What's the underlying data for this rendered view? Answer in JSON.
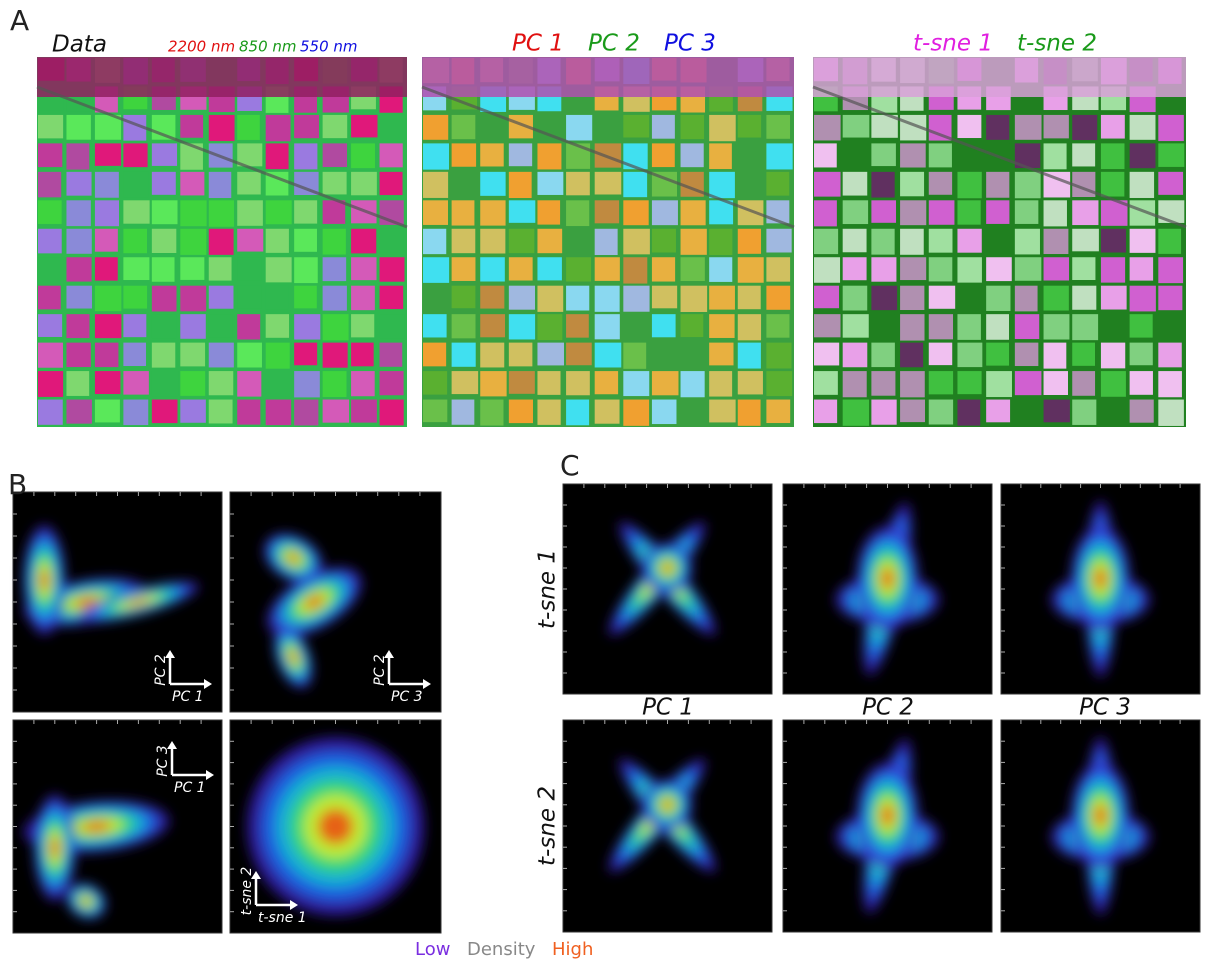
{
  "panel_a": {
    "label": "A",
    "images": [
      {
        "title": "Data",
        "bands": [
          "2200 nm",
          "850 nm",
          "550 nm"
        ]
      },
      {
        "bands": [
          "PC 1",
          "PC 2",
          "PC 3"
        ]
      },
      {
        "bands": [
          "t-sne 1",
          "t-sne 2"
        ]
      }
    ]
  },
  "panel_b": {
    "label": "B",
    "plots": [
      {
        "y_arrow": "PC 2",
        "x_arrow": "PC 1"
      },
      {
        "y_arrow": "PC 2",
        "x_arrow": "PC 3"
      },
      {
        "y_arrow": "PC 3",
        "x_arrow": "PC 1"
      },
      {
        "y_arrow": "t-sne 2",
        "x_arrow": "t-sne 1"
      }
    ]
  },
  "panel_c": {
    "label": "C",
    "row_labels": [
      "t-sne 1",
      "t-sne 2"
    ],
    "column_labels": [
      "PC 1",
      "PC 2",
      "PC 3"
    ]
  },
  "density_legend": [
    "Low",
    "Density",
    "High"
  ]
}
